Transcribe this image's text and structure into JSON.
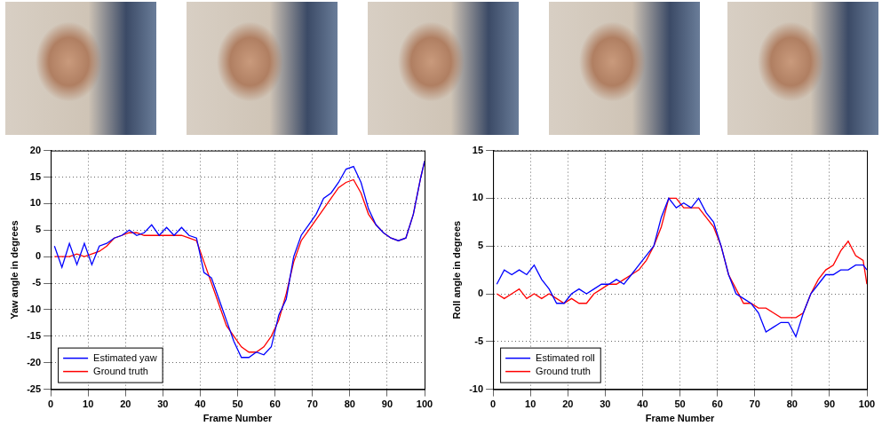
{
  "chart_data": [
    {
      "type": "line",
      "xlabel": "Frame Number",
      "ylabel": "Yaw angle in degrees",
      "x": [
        1,
        3,
        5,
        7,
        9,
        11,
        13,
        15,
        17,
        19,
        21,
        23,
        25,
        27,
        29,
        31,
        33,
        35,
        37,
        39,
        41,
        43,
        45,
        47,
        49,
        51,
        53,
        55,
        57,
        59,
        61,
        63,
        65,
        67,
        69,
        71,
        73,
        75,
        77,
        79,
        81,
        83,
        85,
        87,
        89,
        91,
        93,
        95,
        97,
        99,
        100
      ],
      "series": [
        {
          "name": "Estimated yaw",
          "color": "#0000ff",
          "values": [
            2,
            -2,
            2.5,
            -1.5,
            2.5,
            -1.5,
            2,
            2.5,
            3.5,
            4,
            5,
            4,
            4.5,
            6,
            4,
            5.5,
            4,
            5.5,
            4,
            3.5,
            -3,
            -4,
            -8,
            -12,
            -16,
            -19,
            -19,
            -18,
            -18.5,
            -17,
            -11,
            -8,
            0,
            4,
            6,
            8,
            11,
            12,
            14,
            16.5,
            17,
            14,
            9,
            6,
            4.5,
            3.5,
            3,
            3.5,
            8,
            15,
            18
          ]
        },
        {
          "name": "Ground truth",
          "color": "#ff0000",
          "values": [
            0,
            0,
            0,
            0.5,
            0,
            0.5,
            1,
            2,
            3.5,
            4,
            4.5,
            4.5,
            4,
            4,
            4,
            4,
            4,
            4,
            3.5,
            3,
            -1,
            -5,
            -9,
            -13,
            -15,
            -17,
            -18,
            -18,
            -17,
            -15,
            -12,
            -7,
            -1,
            3,
            5,
            7,
            9,
            11,
            13,
            14,
            14.5,
            12,
            8,
            6,
            4.5,
            3.5,
            3,
            3.5,
            8,
            15,
            18
          ]
        }
      ],
      "xlim": [
        0,
        100
      ],
      "xticks": [
        0,
        10,
        20,
        30,
        40,
        50,
        60,
        70,
        80,
        90,
        100
      ],
      "ylim": [
        -25,
        20
      ],
      "yticks": [
        -25,
        -20,
        -15,
        -10,
        -5,
        0,
        5,
        10,
        15,
        20
      ],
      "grid": true,
      "legend": "lower left"
    },
    {
      "type": "line",
      "xlabel": "Frame Number",
      "ylabel": "Roll angle in degrees",
      "x": [
        1,
        3,
        5,
        7,
        9,
        11,
        13,
        15,
        17,
        19,
        21,
        23,
        25,
        27,
        29,
        31,
        33,
        35,
        37,
        39,
        41,
        43,
        45,
        47,
        49,
        51,
        53,
        55,
        57,
        59,
        61,
        63,
        65,
        67,
        69,
        71,
        73,
        75,
        77,
        79,
        81,
        83,
        85,
        87,
        89,
        91,
        93,
        95,
        97,
        99,
        100
      ],
      "series": [
        {
          "name": "Estimated roll",
          "color": "#0000ff",
          "values": [
            1,
            2.5,
            2,
            2.5,
            2,
            3,
            1.5,
            0.5,
            -1,
            -1,
            0,
            0.5,
            0,
            0.5,
            1,
            1,
            1.5,
            1,
            2,
            3,
            4,
            5,
            8,
            10,
            9,
            9.5,
            9,
            10,
            8.5,
            7.5,
            5,
            2,
            0,
            -0.5,
            -1,
            -2,
            -4,
            -3.5,
            -3,
            -3,
            -4.5,
            -2,
            0,
            1,
            2,
            2,
            2.5,
            2.5,
            3,
            3,
            2.5
          ]
        },
        {
          "name": "Ground truth",
          "color": "#ff0000",
          "values": [
            0,
            -0.5,
            0,
            0.5,
            -0.5,
            0,
            -0.5,
            0,
            -0.5,
            -1,
            -0.5,
            -1,
            -1,
            0,
            0.5,
            1,
            1,
            1.5,
            2,
            2.5,
            3.5,
            5,
            7,
            10,
            10,
            9,
            9,
            9,
            8,
            7,
            5,
            2,
            0.5,
            -1,
            -1,
            -1.5,
            -1.5,
            -2,
            -2.5,
            -2.5,
            -2.5,
            -2,
            0,
            1.5,
            2.5,
            3,
            4.5,
            5.5,
            4,
            3.5,
            1
          ]
        }
      ],
      "xlim": [
        0,
        100
      ],
      "xticks": [
        0,
        10,
        20,
        30,
        40,
        50,
        60,
        70,
        80,
        90,
        100
      ],
      "ylim": [
        -10,
        15
      ],
      "yticks": [
        -10,
        -5,
        0,
        5,
        10,
        15
      ],
      "grid": true,
      "legend": "lower left"
    }
  ]
}
